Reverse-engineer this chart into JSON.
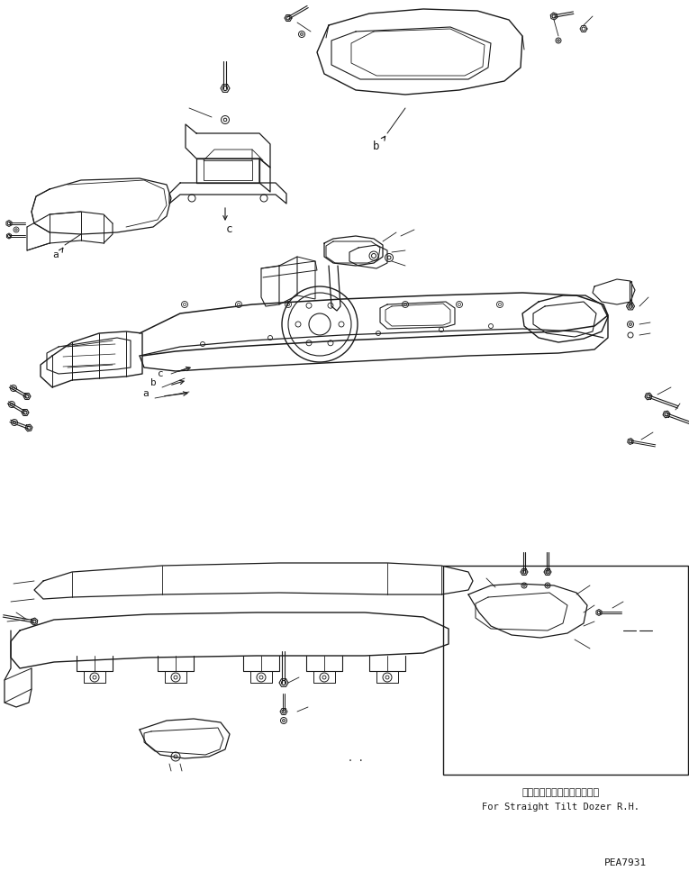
{
  "bg_color": "#ffffff",
  "line_color": "#1a1a1a",
  "fig_width": 7.65,
  "fig_height": 9.77,
  "dpi": 100,
  "label_a": "a",
  "label_b": "b",
  "label_c": "c",
  "inset_label_jp": "ストレートチルトドーザ右用",
  "inset_label_en": "For Straight Tilt Dozer R.H.",
  "part_number": "PEA7931"
}
